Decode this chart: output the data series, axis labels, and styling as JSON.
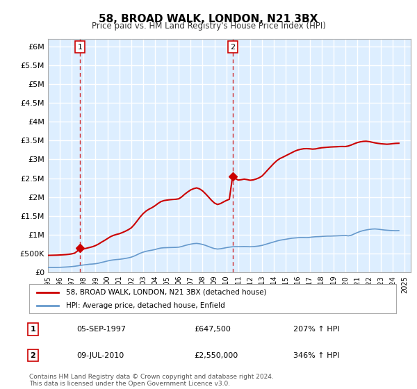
{
  "title": "58, BROAD WALK, LONDON, N21 3BX",
  "subtitle": "Price paid vs. HM Land Registry's House Price Index (HPI)",
  "ylabel_ticks": [
    "£0",
    "£500K",
    "£1M",
    "£1.5M",
    "£2M",
    "£2.5M",
    "£3M",
    "£3.5M",
    "£4M",
    "£4.5M",
    "£5M",
    "£5.5M",
    "£6M"
  ],
  "ytick_values": [
    0,
    500000,
    1000000,
    1500000,
    2000000,
    2500000,
    3000000,
    3500000,
    4000000,
    4500000,
    5000000,
    5500000,
    6000000
  ],
  "ylim": [
    0,
    6200000
  ],
  "xlim_start": 1995.0,
  "xlim_end": 2025.5,
  "background_color": "#ddeeff",
  "plot_bg_color": "#ddeeff",
  "grid_color": "#ffffff",
  "sale1_x": 1997.68,
  "sale1_y": 647500,
  "sale1_label": "1",
  "sale2_x": 2010.52,
  "sale2_y": 2550000,
  "sale2_label": "2",
  "hpi_color": "#6699cc",
  "price_color": "#cc0000",
  "marker_color": "#cc0000",
  "legend_label_price": "58, BROAD WALK, LONDON, N21 3BX (detached house)",
  "legend_label_hpi": "HPI: Average price, detached house, Enfield",
  "annotation1_date": "05-SEP-1997",
  "annotation1_price": "£647,500",
  "annotation1_hpi": "207% ↑ HPI",
  "annotation2_date": "09-JUL-2010",
  "annotation2_price": "£2,550,000",
  "annotation2_hpi": "346% ↑ HPI",
  "footer": "Contains HM Land Registry data © Crown copyright and database right 2024.\nThis data is licensed under the Open Government Licence v3.0.",
  "hpi_data_x": [
    1995.0,
    1995.25,
    1995.5,
    1995.75,
    1996.0,
    1996.25,
    1996.5,
    1996.75,
    1997.0,
    1997.25,
    1997.5,
    1997.75,
    1998.0,
    1998.25,
    1998.5,
    1998.75,
    1999.0,
    1999.25,
    1999.5,
    1999.75,
    2000.0,
    2000.25,
    2000.5,
    2000.75,
    2001.0,
    2001.25,
    2001.5,
    2001.75,
    2002.0,
    2002.25,
    2002.5,
    2002.75,
    2003.0,
    2003.25,
    2003.5,
    2003.75,
    2004.0,
    2004.25,
    2004.5,
    2004.75,
    2005.0,
    2005.25,
    2005.5,
    2005.75,
    2006.0,
    2006.25,
    2006.5,
    2006.75,
    2007.0,
    2007.25,
    2007.5,
    2007.75,
    2008.0,
    2008.25,
    2008.5,
    2008.75,
    2009.0,
    2009.25,
    2009.5,
    2009.75,
    2010.0,
    2010.25,
    2010.5,
    2010.75,
    2011.0,
    2011.25,
    2011.5,
    2011.75,
    2012.0,
    2012.25,
    2012.5,
    2012.75,
    2013.0,
    2013.25,
    2013.5,
    2013.75,
    2014.0,
    2014.25,
    2014.5,
    2014.75,
    2015.0,
    2015.25,
    2015.5,
    2015.75,
    2016.0,
    2016.25,
    2016.5,
    2016.75,
    2017.0,
    2017.25,
    2017.5,
    2017.75,
    2018.0,
    2018.25,
    2018.5,
    2018.75,
    2019.0,
    2019.25,
    2019.5,
    2019.75,
    2020.0,
    2020.25,
    2020.5,
    2020.75,
    2021.0,
    2021.25,
    2021.5,
    2021.75,
    2022.0,
    2022.25,
    2022.5,
    2022.75,
    2023.0,
    2023.25,
    2023.5,
    2023.75,
    2024.0,
    2024.25,
    2024.5
  ],
  "hpi_data_y": [
    130000,
    128000,
    127000,
    129000,
    132000,
    136000,
    140000,
    145000,
    152000,
    161000,
    172000,
    185000,
    195000,
    205000,
    215000,
    220000,
    228000,
    242000,
    262000,
    280000,
    300000,
    318000,
    330000,
    338000,
    345000,
    355000,
    368000,
    383000,
    402000,
    432000,
    468000,
    505000,
    535000,
    558000,
    575000,
    588000,
    605000,
    628000,
    645000,
    652000,
    655000,
    658000,
    660000,
    662000,
    668000,
    685000,
    710000,
    730000,
    748000,
    762000,
    768000,
    758000,
    740000,
    715000,
    685000,
    655000,
    630000,
    618000,
    625000,
    640000,
    655000,
    668000,
    678000,
    682000,
    680000,
    682000,
    685000,
    682000,
    678000,
    682000,
    690000,
    700000,
    715000,
    738000,
    762000,
    785000,
    808000,
    832000,
    852000,
    865000,
    878000,
    892000,
    905000,
    912000,
    918000,
    925000,
    925000,
    920000,
    928000,
    938000,
    945000,
    948000,
    952000,
    958000,
    962000,
    962000,
    965000,
    968000,
    972000,
    975000,
    980000,
    968000,
    985000,
    1020000,
    1055000,
    1085000,
    1108000,
    1125000,
    1138000,
    1148000,
    1152000,
    1145000,
    1135000,
    1125000,
    1118000,
    1112000,
    1108000,
    1105000,
    1108000
  ],
  "price_data_x": [
    1995.0,
    1995.25,
    1995.5,
    1995.75,
    1996.0,
    1996.25,
    1996.5,
    1996.75,
    1997.0,
    1997.25,
    1997.5,
    1997.68,
    1997.75,
    1998.0,
    1998.25,
    1998.5,
    1998.75,
    1999.0,
    1999.25,
    1999.5,
    1999.75,
    2000.0,
    2000.25,
    2000.5,
    2000.75,
    2001.0,
    2001.25,
    2001.5,
    2001.75,
    2002.0,
    2002.25,
    2002.5,
    2002.75,
    2003.0,
    2003.25,
    2003.5,
    2003.75,
    2004.0,
    2004.25,
    2004.5,
    2004.75,
    2005.0,
    2005.25,
    2005.5,
    2005.75,
    2006.0,
    2006.25,
    2006.5,
    2006.75,
    2007.0,
    2007.25,
    2007.5,
    2007.75,
    2008.0,
    2008.25,
    2008.5,
    2008.75,
    2009.0,
    2009.25,
    2009.5,
    2009.75,
    2010.0,
    2010.25,
    2010.52,
    2010.75,
    2011.0,
    2011.25,
    2011.5,
    2011.75,
    2012.0,
    2012.25,
    2012.5,
    2012.75,
    2013.0,
    2013.25,
    2013.5,
    2013.75,
    2014.0,
    2014.25,
    2014.5,
    2014.75,
    2015.0,
    2015.25,
    2015.5,
    2015.75,
    2016.0,
    2016.25,
    2016.5,
    2016.75,
    2017.0,
    2017.25,
    2017.5,
    2017.75,
    2018.0,
    2018.25,
    2018.5,
    2018.75,
    2019.0,
    2019.25,
    2019.5,
    2019.75,
    2020.0,
    2020.25,
    2020.5,
    2020.75,
    2021.0,
    2021.25,
    2021.5,
    2021.75,
    2022.0,
    2022.25,
    2022.5,
    2022.75,
    2023.0,
    2023.25,
    2023.5,
    2023.75,
    2024.0,
    2024.25,
    2024.5
  ],
  "price_data_y": [
    450000,
    452000,
    454000,
    456000,
    460000,
    465000,
    470000,
    478000,
    490000,
    510000,
    570000,
    647500,
    600000,
    620000,
    640000,
    660000,
    680000,
    710000,
    750000,
    800000,
    845000,
    895000,
    945000,
    980000,
    1005000,
    1025000,
    1055000,
    1090000,
    1130000,
    1180000,
    1265000,
    1365000,
    1470000,
    1558000,
    1628000,
    1678000,
    1718000,
    1768000,
    1828000,
    1878000,
    1905000,
    1918000,
    1928000,
    1935000,
    1940000,
    1952000,
    2005000,
    2075000,
    2135000,
    2188000,
    2222000,
    2242000,
    2215000,
    2162000,
    2085000,
    2000000,
    1912000,
    1840000,
    1802000,
    1825000,
    1868000,
    1908000,
    1940000,
    2550000,
    2490000,
    2450000,
    2460000,
    2475000,
    2462000,
    2445000,
    2455000,
    2478000,
    2510000,
    2558000,
    2640000,
    2728000,
    2812000,
    2895000,
    2968000,
    3022000,
    3058000,
    3098000,
    3138000,
    3178000,
    3218000,
    3248000,
    3268000,
    3282000,
    3285000,
    3280000,
    3272000,
    3278000,
    3295000,
    3308000,
    3315000,
    3322000,
    3328000,
    3332000,
    3335000,
    3340000,
    3342000,
    3340000,
    3355000,
    3382000,
    3415000,
    3445000,
    3465000,
    3478000,
    3482000,
    3472000,
    3455000,
    3438000,
    3425000,
    3415000,
    3408000,
    3402000,
    3408000,
    3418000,
    3425000,
    3428000
  ]
}
